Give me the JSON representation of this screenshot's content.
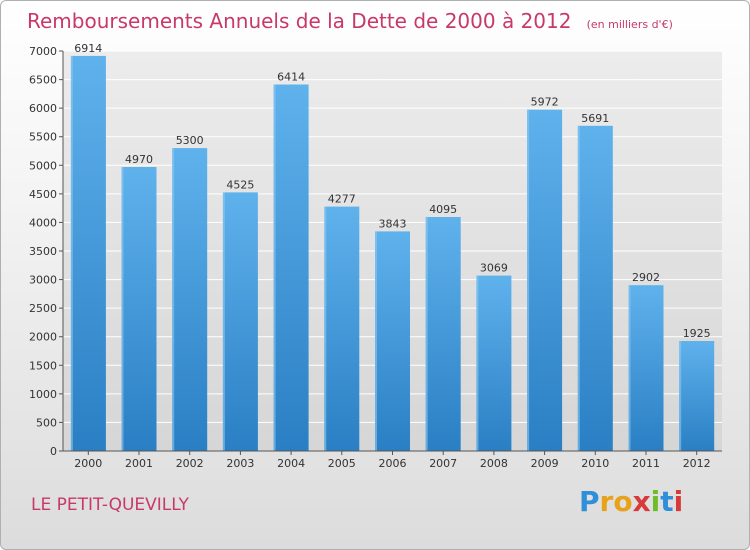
{
  "chart_data": {
    "type": "bar",
    "title": "Remboursements Annuels de la Dette de 2000 à 2012",
    "subtitle": "(en milliers d'€)",
    "categories": [
      "2000",
      "2001",
      "2002",
      "2003",
      "2004",
      "2005",
      "2006",
      "2007",
      "2008",
      "2009",
      "2010",
      "2011",
      "2012"
    ],
    "values": [
      6914,
      4970,
      5300,
      4525,
      6414,
      4277,
      3843,
      4095,
      3069,
      5972,
      5691,
      2902,
      1925
    ],
    "ylim": [
      0,
      7000
    ],
    "yticks": [
      0,
      500,
      1000,
      1500,
      2000,
      2500,
      3000,
      3500,
      4000,
      4500,
      5000,
      5500,
      6000,
      6500,
      7000
    ],
    "grid": true,
    "bar_color": "#3c96d8",
    "xlabel": "",
    "ylabel": ""
  },
  "footer": {
    "commune": "LE PETIT-QUEVILLY",
    "logo": "Proxiti"
  }
}
